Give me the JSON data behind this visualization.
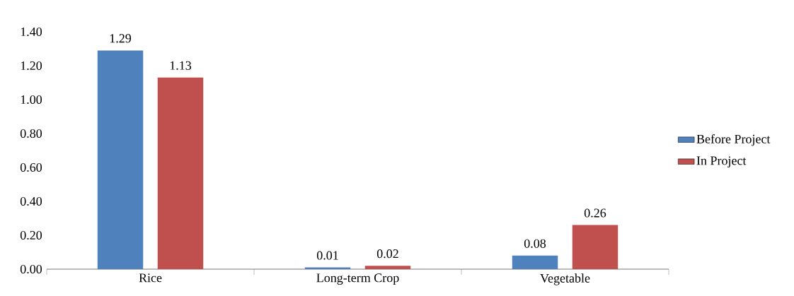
{
  "chart_data": {
    "type": "bar",
    "categories": [
      "Rice",
      "Long-term Crop",
      "Vegetable"
    ],
    "series": [
      {
        "name": "Before Project",
        "color": "#4f81bd",
        "values": [
          1.29,
          0.01,
          0.08
        ]
      },
      {
        "name": "In Project",
        "color": "#c0504d",
        "values": [
          1.13,
          0.02,
          0.26
        ]
      }
    ],
    "ylim": [
      0,
      1.4
    ],
    "yticks": [
      {
        "value": 0,
        "label": "0.00"
      },
      {
        "value": 0.2,
        "label": "0.20"
      },
      {
        "value": 0.4,
        "label": "0.40"
      },
      {
        "value": 0.6,
        "label": "0.60"
      },
      {
        "value": 0.8,
        "label": "0.80"
      },
      {
        "value": 1.0,
        "label": "1.00"
      },
      {
        "value": 1.2,
        "label": "1.20"
      },
      {
        "value": 1.4,
        "label": "1.40"
      }
    ],
    "data_labels": true,
    "grid": false,
    "legend": "right"
  }
}
